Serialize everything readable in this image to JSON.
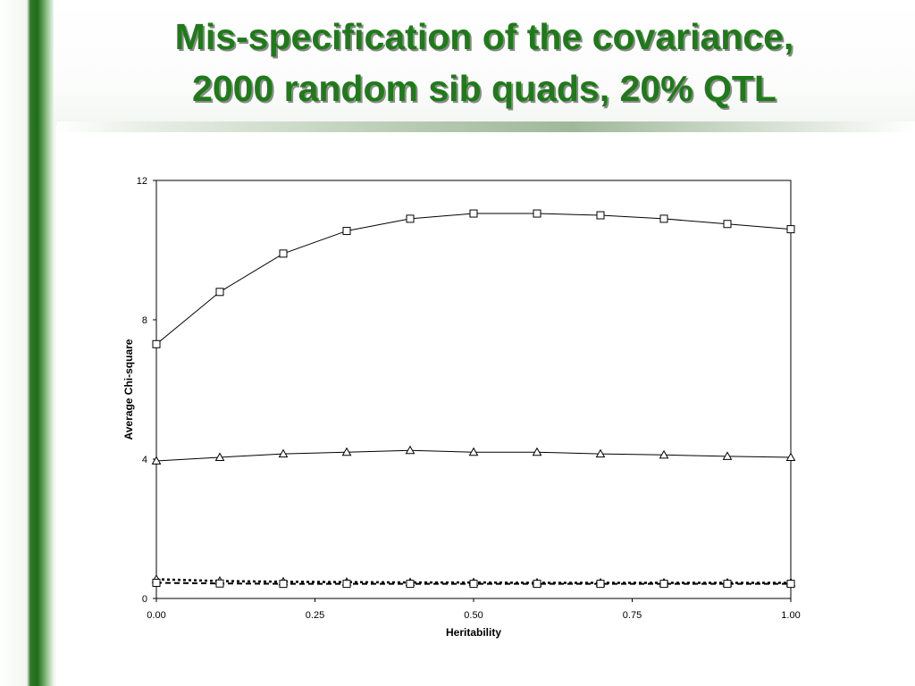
{
  "slide": {
    "title_line1": "Mis-specification of the covariance,",
    "title_line2": "2000 random sib quads, 20% QTL"
  },
  "chart_data": {
    "type": "line",
    "title": "",
    "xlabel": "Heritability",
    "ylabel": "Average Chi-square",
    "xlim": [
      0,
      1
    ],
    "ylim": [
      0,
      12
    ],
    "x_ticks": [
      "0.00",
      "0.25",
      "0.50",
      "0.75",
      "1.00"
    ],
    "y_ticks": [
      "0",
      "4",
      "8",
      "12"
    ],
    "grid": false,
    "x": [
      0.0,
      0.1,
      0.2,
      0.3,
      0.4,
      0.5,
      0.6,
      0.7,
      0.8,
      0.9,
      1.0
    ],
    "series": [
      {
        "marker": "square",
        "line": "solid",
        "values": [
          7.3,
          8.8,
          9.9,
          10.55,
          10.9,
          11.05,
          11.05,
          11.0,
          10.9,
          10.75,
          10.6
        ]
      },
      {
        "marker": "triangle",
        "line": "solid",
        "values": [
          3.95,
          4.05,
          4.15,
          4.2,
          4.25,
          4.2,
          4.2,
          4.15,
          4.12,
          4.08,
          4.05
        ]
      },
      {
        "marker": "triangle",
        "line": "dotted",
        "values": [
          0.55,
          0.5,
          0.48,
          0.47,
          0.46,
          0.46,
          0.45,
          0.45,
          0.45,
          0.45,
          0.45
        ]
      },
      {
        "marker": "square",
        "line": "dashed",
        "values": [
          0.45,
          0.43,
          0.42,
          0.42,
          0.42,
          0.42,
          0.42,
          0.42,
          0.42,
          0.42,
          0.42
        ]
      }
    ]
  }
}
